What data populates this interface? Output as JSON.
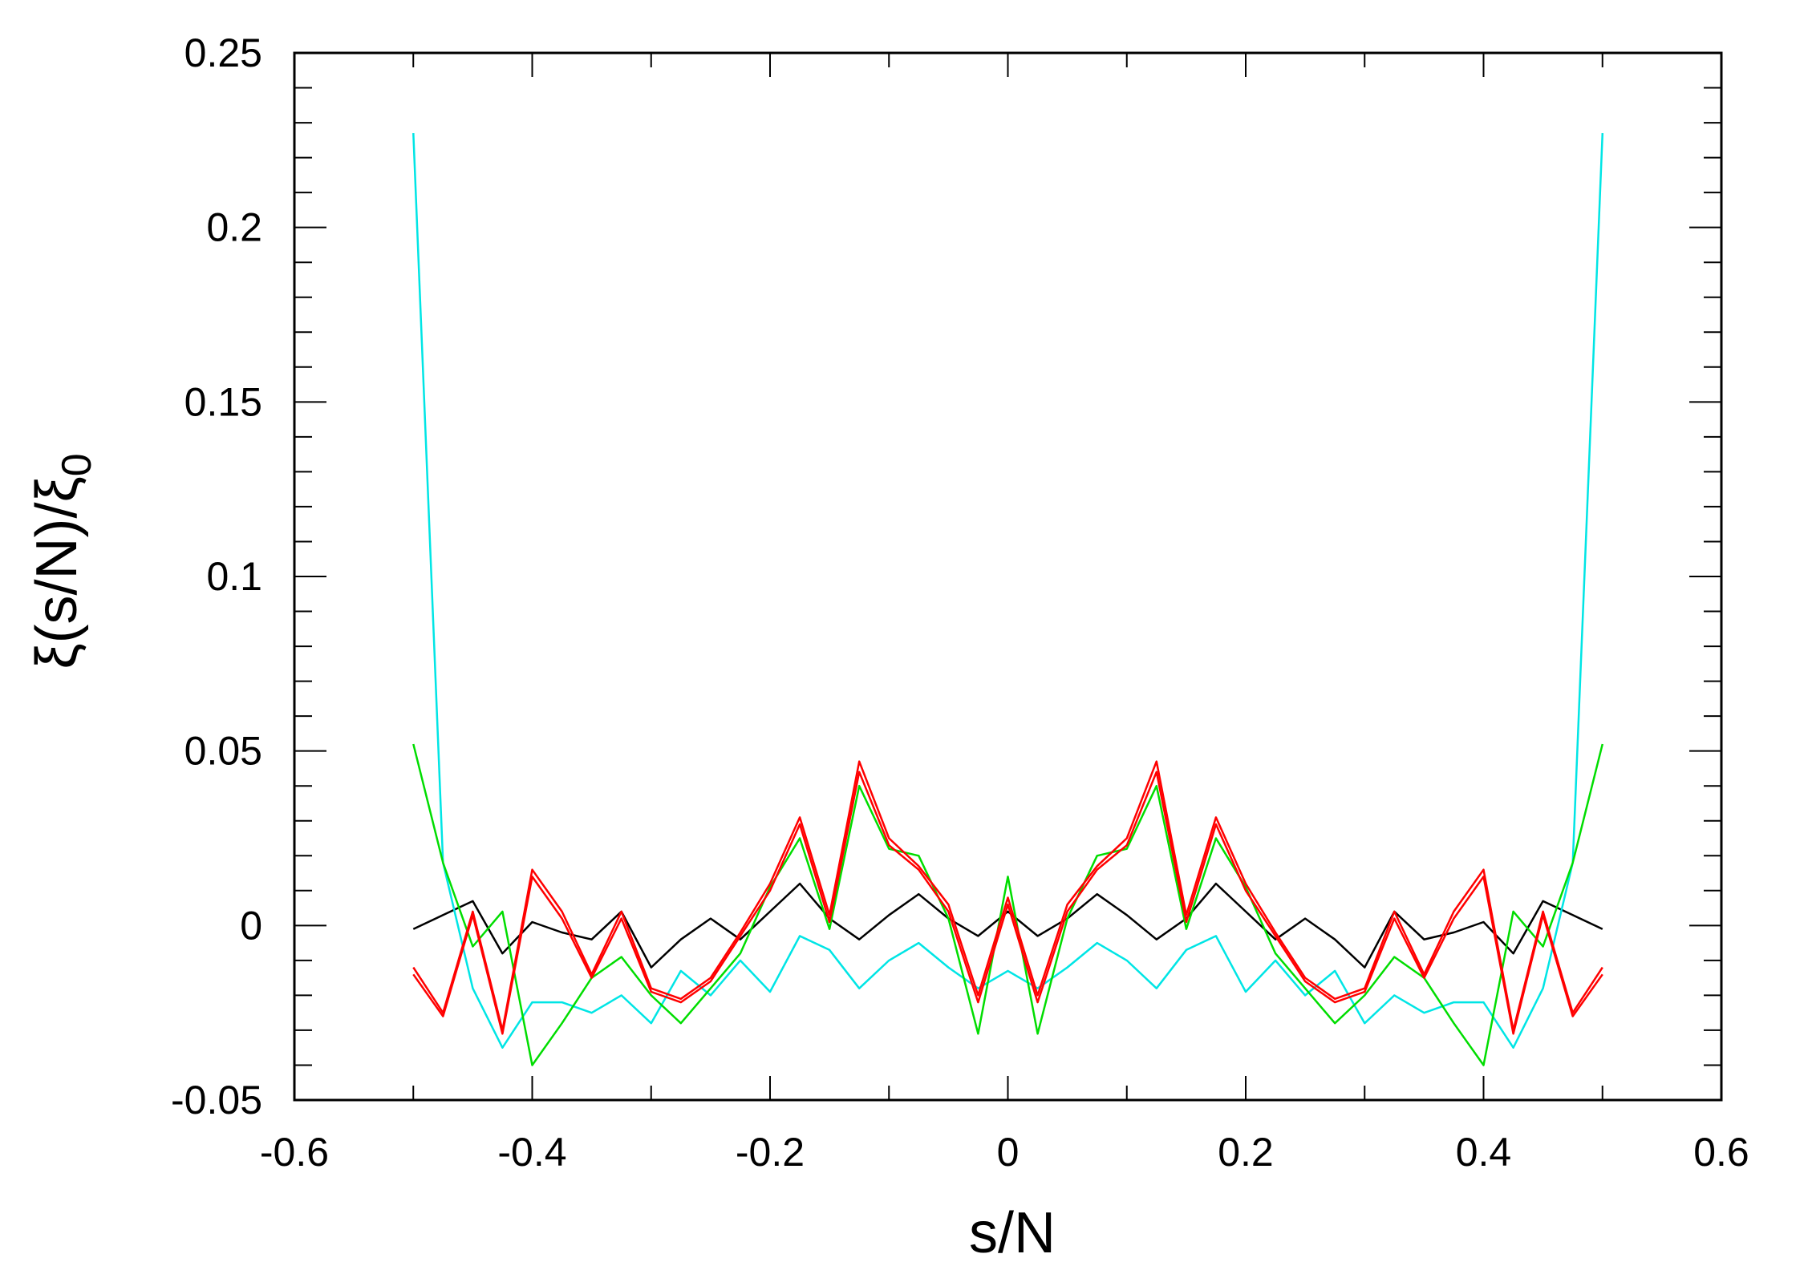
{
  "chart_data": {
    "type": "line",
    "title": "",
    "xlabel": "s/N",
    "ylabel": {
      "main": "ξ(s/N)/ξ",
      "subscript": "0"
    },
    "xlim": [
      -0.6,
      0.6
    ],
    "ylim": [
      -0.05,
      0.25
    ],
    "xticks": [
      -0.6,
      -0.4,
      -0.2,
      0,
      0.2,
      0.4,
      0.6
    ],
    "xtick_labels": [
      "-0.6",
      "-0.4",
      "-0.2",
      "0",
      "0.2",
      "0.4",
      "0.6"
    ],
    "yticks": [
      -0.05,
      0,
      0.05,
      0.1,
      0.15,
      0.2,
      0.25
    ],
    "ytick_labels": [
      "-0.05",
      "0",
      "0.05",
      "0.1",
      "0.15",
      "0.2",
      "0.25"
    ],
    "grid": false,
    "legend": "none",
    "series": [
      {
        "color": "#000000",
        "symmetric": true,
        "x": [
          0.0,
          0.025,
          0.05,
          0.075,
          0.1,
          0.125,
          0.15,
          0.175,
          0.2,
          0.225,
          0.25,
          0.275,
          0.3,
          0.325,
          0.35,
          0.375,
          0.4,
          0.425,
          0.45,
          0.475,
          0.5
        ],
        "y": [
          0.004,
          -0.003,
          0.002,
          0.009,
          0.003,
          -0.004,
          0.002,
          0.012,
          0.004,
          -0.004,
          0.002,
          -0.004,
          -0.012,
          0.004,
          -0.004,
          -0.002,
          0.001,
          -0.008,
          0.007,
          0.003,
          -0.001
        ]
      },
      {
        "color": "#00e5e5",
        "symmetric": true,
        "x": [
          0.0,
          0.025,
          0.05,
          0.075,
          0.1,
          0.125,
          0.15,
          0.175,
          0.2,
          0.225,
          0.25,
          0.275,
          0.3,
          0.325,
          0.35,
          0.375,
          0.4,
          0.425,
          0.45,
          0.475,
          0.5
        ],
        "y": [
          -0.013,
          -0.018,
          -0.012,
          -0.005,
          -0.01,
          -0.018,
          -0.007,
          -0.003,
          -0.019,
          -0.01,
          -0.02,
          -0.013,
          -0.028,
          -0.02,
          -0.025,
          -0.022,
          -0.022,
          -0.035,
          -0.018,
          0.018,
          0.227
        ]
      },
      {
        "color": "#00dd00",
        "symmetric": true,
        "x": [
          0.0,
          0.025,
          0.05,
          0.075,
          0.1,
          0.125,
          0.15,
          0.175,
          0.2,
          0.225,
          0.25,
          0.275,
          0.3,
          0.325,
          0.35,
          0.375,
          0.4,
          0.425,
          0.45,
          0.475,
          0.5
        ],
        "y": [
          0.014,
          -0.031,
          0.002,
          0.02,
          0.022,
          0.04,
          -0.001,
          0.025,
          0.011,
          -0.008,
          -0.018,
          -0.028,
          -0.02,
          -0.009,
          -0.015,
          -0.028,
          -0.04,
          0.004,
          -0.006,
          0.018,
          0.052
        ]
      },
      {
        "color": "#ff0000",
        "symmetric": true,
        "x": [
          0.0,
          0.025,
          0.05,
          0.075,
          0.1,
          0.125,
          0.15,
          0.175,
          0.2,
          0.225,
          0.25,
          0.275,
          0.3,
          0.325,
          0.35,
          0.375,
          0.4,
          0.425,
          0.45,
          0.475,
          0.5
        ],
        "y": [
          0.008,
          -0.02,
          0.006,
          0.017,
          0.025,
          0.047,
          0.003,
          0.031,
          0.012,
          -0.002,
          -0.015,
          -0.021,
          -0.018,
          0.004,
          -0.014,
          0.004,
          0.016,
          -0.03,
          0.004,
          -0.025,
          -0.012
        ]
      },
      {
        "color": "#ff0000",
        "symmetric": true,
        "x": [
          0.0,
          0.025,
          0.05,
          0.075,
          0.1,
          0.125,
          0.15,
          0.175,
          0.2,
          0.225,
          0.25,
          0.275,
          0.3,
          0.325,
          0.35,
          0.375,
          0.4,
          0.425,
          0.45,
          0.475,
          0.5
        ],
        "y": [
          0.006,
          -0.022,
          0.004,
          0.016,
          0.023,
          0.044,
          0.001,
          0.029,
          0.01,
          -0.003,
          -0.016,
          -0.022,
          -0.019,
          0.002,
          -0.015,
          0.002,
          0.014,
          -0.031,
          0.003,
          -0.026,
          -0.014
        ]
      }
    ]
  }
}
